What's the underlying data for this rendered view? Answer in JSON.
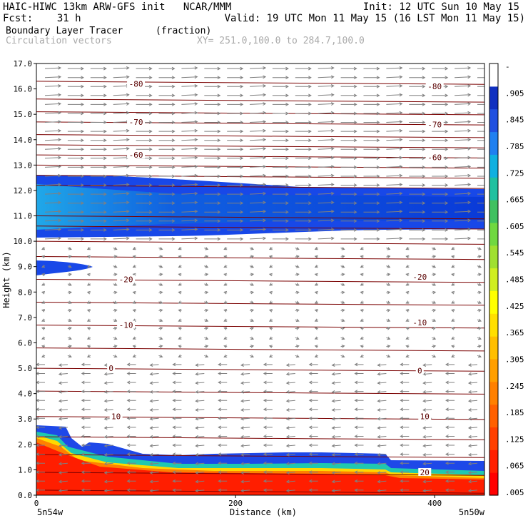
{
  "header": {
    "line1_left": "HAIC-HIWC 13km ARW-GFS init   NCAR/MMM",
    "line1_right": "Init: 12 UTC Sun 10 May 15",
    "line2_left": "Fcst:    31 h",
    "line2_right": "Valid: 19 UTC Mon 11 May 15 (16 LST Mon 11 May 15)",
    "field": "Boundary Layer Tracer",
    "field_units": "(fraction)",
    "vectors": "Circulation vectors",
    "xy": "XY= 251.0,100.0 to 284.7,100.0"
  },
  "colors": {
    "contour": "#7a0000",
    "vector": "#808080",
    "colorbar": [
      "#ff0000",
      "#ff2000",
      "#ff4000",
      "#ff6000",
      "#ff8000",
      "#ff9f00",
      "#ffbf00",
      "#ffdf00",
      "#ffff00",
      "#d0ef20",
      "#a0e030",
      "#70d840",
      "#40c060",
      "#20c0a0",
      "#10b0e0",
      "#2080f0",
      "#2050e0",
      "#1030c0",
      "#ffffff"
    ]
  },
  "chart_data": {
    "type": "heatmap",
    "title": "Boundary Layer Tracer",
    "units": "(fraction)",
    "xlabel": "Distance (km)",
    "ylabel": "Height (km)",
    "xlim": [
      0,
      450
    ],
    "ylim": [
      0.0,
      17.0
    ],
    "x_ticks": [
      "0",
      "200",
      "400"
    ],
    "x_tick_values": [
      0,
      200,
      400
    ],
    "y_ticks": [
      "0.0",
      "1.0",
      "2.0",
      "3.0",
      "4.0",
      "5.0",
      "6.0",
      "7.0",
      "8.0",
      "9.0",
      "10.0",
      "11.0",
      "12.0",
      "13.0",
      "14.0",
      "15.0",
      "16.0",
      "17.0"
    ],
    "x_endpoints": [
      "5n54w",
      "5n50w"
    ],
    "colorbar_labels": [
      ".005",
      ".065",
      ".125",
      ".185",
      ".245",
      ".305",
      ".365",
      ".425",
      ".485",
      ".545",
      ".605",
      ".665",
      ".725",
      ".785",
      ".845",
      ".905",
      "-"
    ],
    "contour_labels": [
      {
        "text": "-80",
        "x": 100,
        "y": 16.2
      },
      {
        "text": "-80",
        "x": 400,
        "y": 16.1
      },
      {
        "text": "-70",
        "x": 100,
        "y": 14.7
      },
      {
        "text": "-70",
        "x": 400,
        "y": 14.6
      },
      {
        "text": "-60",
        "x": 100,
        "y": 13.4
      },
      {
        "text": "-60",
        "x": 400,
        "y": 13.3
      },
      {
        "text": "-20",
        "x": 90,
        "y": 8.5
      },
      {
        "text": "-20",
        "x": 385,
        "y": 8.6
      },
      {
        "text": "-10",
        "x": 90,
        "y": 6.7
      },
      {
        "text": "-10",
        "x": 385,
        "y": 6.8
      },
      {
        "text": "0",
        "x": 75,
        "y": 5.0
      },
      {
        "text": "0",
        "x": 385,
        "y": 4.9
      },
      {
        "text": "10",
        "x": 80,
        "y": 3.1
      },
      {
        "text": "10",
        "x": 390,
        "y": 3.1
      },
      {
        "text": "20",
        "x": 390,
        "y": 0.9
      }
    ]
  }
}
